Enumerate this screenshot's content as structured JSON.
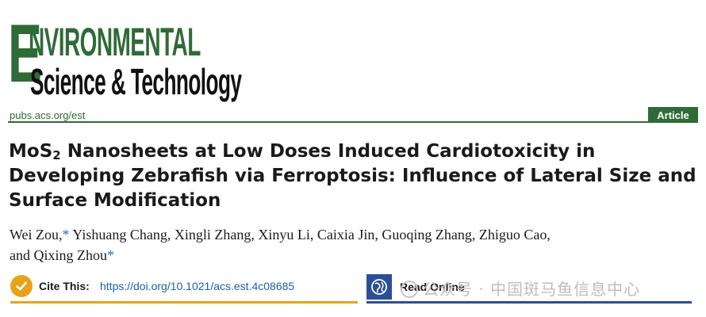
{
  "journal": {
    "logo_line1": "NVIRONMENTAL",
    "logo_big_letter": "E",
    "logo_line2": "Science & Technology",
    "url": "pubs.acs.org/est",
    "badge": "Article",
    "brand_color": "#2f6b37"
  },
  "article": {
    "title_part1": "MoS",
    "title_sub": "2",
    "title_part2": " Nanosheets at Low Doses Induced Cardiotoxicity in Developing Zebrafish via Ferroptosis: Influence of Lateral Size and Surface Modification",
    "authors_line1": "Wei Zou,",
    "authors_line1_rest": " Yishuang Chang, Xingli Zhang, Xinyu Li, Caixia Jin, Guoqing Zhang, Zhiguo Cao,",
    "authors_line2": "and Qixing Zhou",
    "corresponding_mark": "*"
  },
  "cite": {
    "label": "Cite This:",
    "doi": "https://doi.org/10.1021/acs.est.4c08685",
    "icon": "check-circle-icon",
    "accent": "#e8a21a"
  },
  "read_online": {
    "label": "Read Online",
    "icon": "globe-icon",
    "accent": "#2a4f99"
  },
  "watermark": {
    "text": "公众号 · 中国斑马鱼信息中心"
  }
}
